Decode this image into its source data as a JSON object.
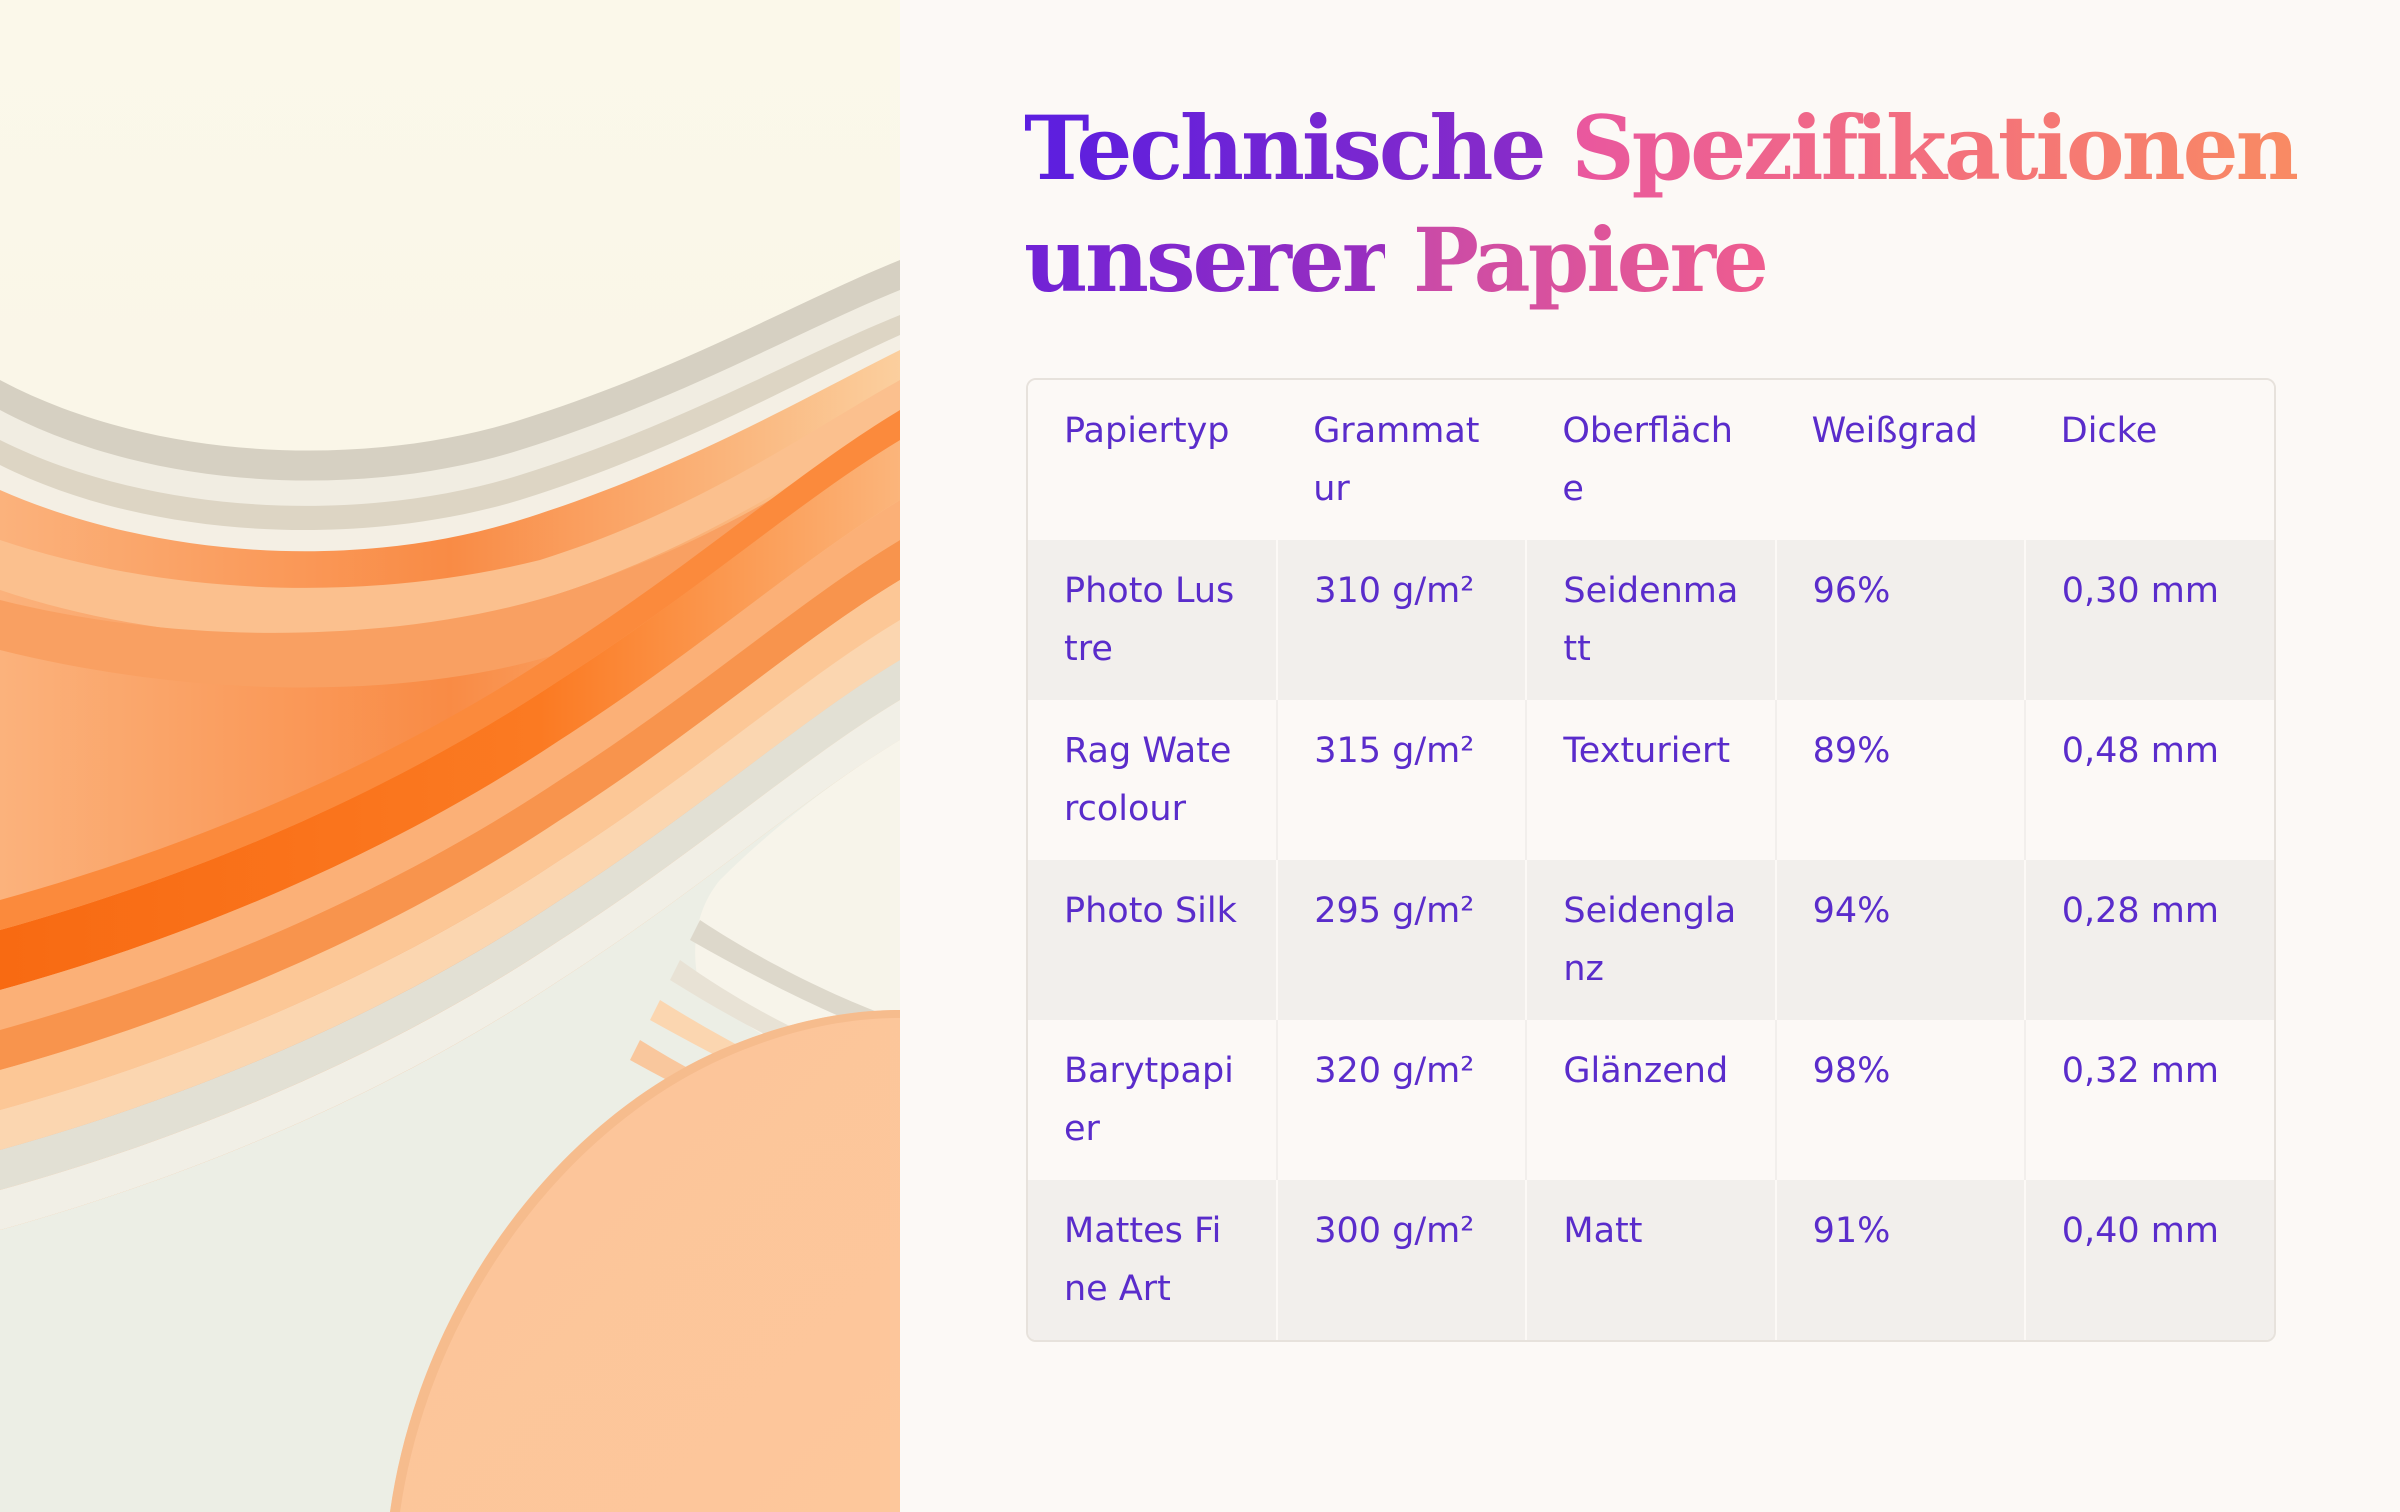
{
  "heading": {
    "line1_word1": "Technische",
    "line1_word2": "Spezifikationen",
    "line2_word1": "unserer",
    "line2_word2": "Papiere"
  },
  "table": {
    "headers": [
      "Papiertyp",
      "Grammatur",
      "Oberfläche",
      "Weißgrad",
      "Dicke"
    ],
    "rows": [
      [
        "Photo Lustre",
        "310 g/m²",
        "Seidenmatt",
        "96%",
        "0,30 mm"
      ],
      [
        "Rag Watercolour",
        "315 g/m²",
        "Texturiert",
        "89%",
        "0,48 mm"
      ],
      [
        "Photo Silk",
        "295 g/m²",
        "Seidenglanz",
        "94%",
        "0,28 mm"
      ],
      [
        "Barytpapier",
        "320 g/m²",
        "Glänzend",
        "98%",
        "0,32 mm"
      ],
      [
        "Mattes Fine Art",
        "300 g/m²",
        "Matt",
        "91%",
        "0,40 mm"
      ]
    ]
  },
  "colors": {
    "text_table": "#5a2ccb",
    "heading_purple": "#6a20d6",
    "heading_pink": "#ec5e9a",
    "background": "#fcf9f6",
    "row_shade": "#f2efec",
    "art_orange": "#f97a2a"
  }
}
